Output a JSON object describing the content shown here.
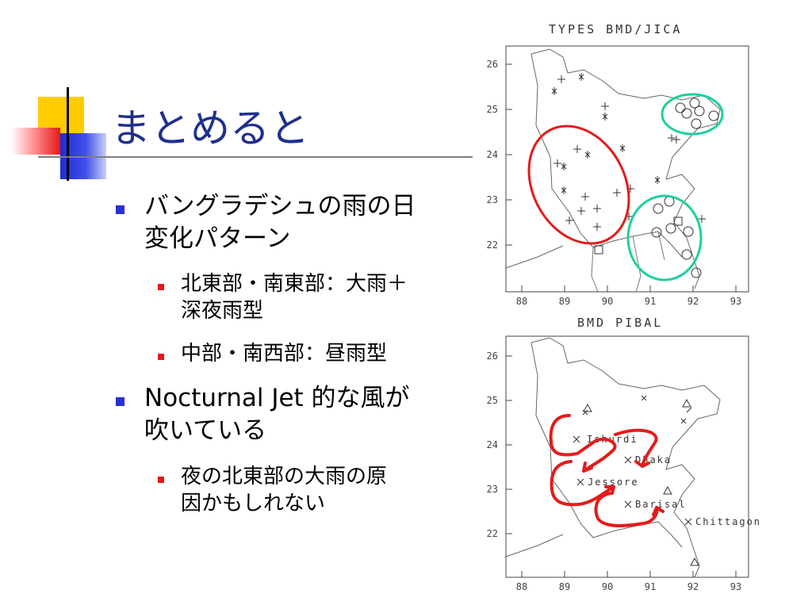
{
  "title": "まとめると",
  "bullets": [
    {
      "text_lines": [
        "バングラデシュの雨の日",
        "変化パターン"
      ],
      "sub": [
        {
          "text_lines": [
            "北東部・南東部：大雨＋",
            "深夜雨型"
          ]
        },
        {
          "text_lines": [
            "中部・南西部：昼雨型"
          ]
        }
      ]
    },
    {
      "text_lines": [
        "Nocturnal Jet 的な風が",
        "吹いている"
      ],
      "sub": [
        {
          "text_lines": [
            "夜の北東部の大雨の原",
            "因かもしれない"
          ]
        }
      ]
    }
  ],
  "map_top": {
    "title": "TYPES BMD/JICA",
    "x_ticks": [
      "88",
      "89",
      "90",
      "91",
      "92",
      "93"
    ],
    "y_ticks": [
      "26",
      "25",
      "24",
      "23",
      "22"
    ]
  },
  "map_bottom": {
    "title": "BMD PIBAL",
    "x_ticks": [
      "88",
      "89",
      "90",
      "91",
      "92",
      "93"
    ],
    "y_ticks": [
      "26",
      "25",
      "24",
      "23",
      "22"
    ],
    "stations": [
      "Ishurdi",
      "Dhaka",
      "Jessore",
      "Barisal",
      "Chittagong"
    ]
  },
  "colors": {
    "title": "#1f2f8f",
    "bullet_level1": "#2a2fd0",
    "bullet_level2": "#e8161c",
    "highlight_red": "#e41b1b",
    "highlight_green": "#1ecfa0",
    "arrow_red": "#e41b1b"
  }
}
